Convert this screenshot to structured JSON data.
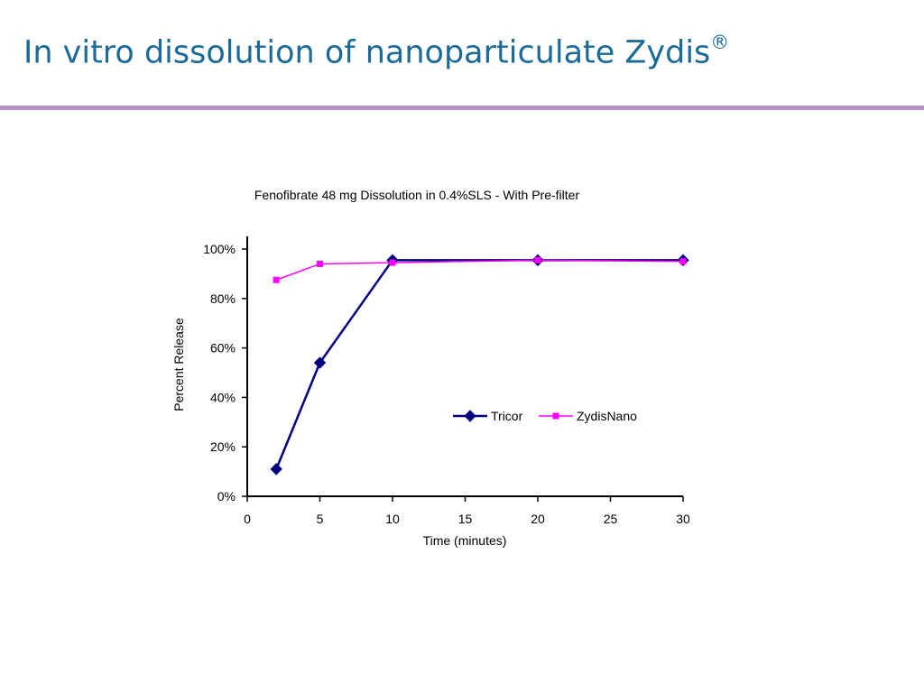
{
  "slide": {
    "title": "In vitro dissolution of nanoparticulate Zydis",
    "title_mark": "®",
    "title_color": "#1a6a9a",
    "divider_color": "#b58fca"
  },
  "chart_data": {
    "type": "line",
    "title": "Fenofibrate 48 mg Dissolution in 0.4%SLS - With Pre-filter",
    "xlabel": "Time (minutes)",
    "ylabel": "Percent Release",
    "xlim": [
      0,
      30
    ],
    "ylim": [
      0,
      100
    ],
    "x_ticks": [
      "0",
      "5",
      "10",
      "15",
      "20",
      "25",
      "30"
    ],
    "y_ticks": [
      "0%",
      "20%",
      "40%",
      "60%",
      "80%",
      "100%"
    ],
    "grid": false,
    "legend_position": "center-right",
    "series": [
      {
        "name": "Tricor",
        "color": "#000080",
        "marker": "diamond",
        "x": [
          2,
          5,
          10,
          20,
          30
        ],
        "y": [
          11,
          54,
          95.5,
          95.5,
          95.5
        ]
      },
      {
        "name": "ZydisNano",
        "color": "#ff00ff",
        "marker": "square",
        "x": [
          2,
          5,
          10,
          20,
          30
        ],
        "y": [
          87.5,
          94,
          94.5,
          95.5,
          95
        ]
      }
    ]
  }
}
